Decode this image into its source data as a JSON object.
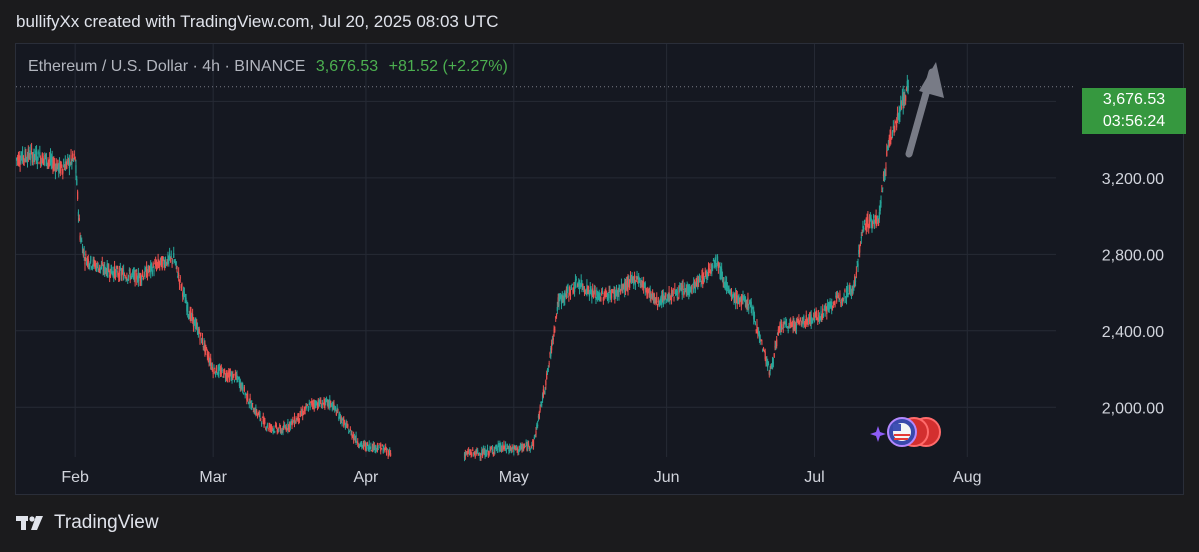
{
  "header": {
    "text": "bullifyXx created with TradingView.com, Jul 20, 2025 08:03 UTC"
  },
  "symbol": {
    "name": "Ethereum / U.S. Dollar · 4h · BINANCE",
    "price": "3,676.53",
    "change": "+81.52 (+2.27%)"
  },
  "badge": {
    "price": "3,676.53",
    "countdown": "03:56:24"
  },
  "footer": {
    "brand": "TradingView"
  },
  "colors": {
    "up": "#26a69a",
    "down": "#ef5350",
    "badge": "#36983f",
    "arrow": "#787b86"
  },
  "chart_data": {
    "type": "line",
    "xlabel": "",
    "ylabel": "",
    "yticks": [
      "2,000.00",
      "2,400.00",
      "2,800.00",
      "3,200.00"
    ],
    "ytick_values": [
      2000,
      2400,
      2800,
      3200
    ],
    "ylim": [
      1740,
      3900
    ],
    "xticks": [
      "Feb",
      "Mar",
      "Apr",
      "May",
      "Jun",
      "Jul",
      "Aug"
    ],
    "xtick_values": [
      "2025-02-01",
      "2025-03-01",
      "2025-04-01",
      "2025-05-01",
      "2025-06-01",
      "2025-07-01",
      "2025-08-01"
    ],
    "xlim": [
      "2025-01-20",
      "2025-08-19"
    ],
    "last_price": 3676.53,
    "series": [
      {
        "x": [
          "2025-01-20",
          "2025-01-23",
          "2025-01-26",
          "2025-01-29",
          "2025-02-01",
          "2025-02-02",
          "2025-02-03",
          "2025-02-06",
          "2025-02-10",
          "2025-02-14",
          "2025-02-18",
          "2025-02-21",
          "2025-02-24",
          "2025-02-26",
          "2025-03-01",
          "2025-03-03",
          "2025-03-06",
          "2025-03-09",
          "2025-03-12",
          "2025-03-15",
          "2025-03-18",
          "2025-03-21",
          "2025-03-25",
          "2025-03-28",
          "2025-03-31",
          "2025-04-04",
          "2025-04-06",
          "2025-04-10",
          "2025-04-15",
          "2025-04-20",
          "2025-04-22",
          "2025-04-25",
          "2025-04-28",
          "2025-05-02",
          "2025-05-05",
          "2025-05-08",
          "2025-05-10",
          "2025-05-14",
          "2025-05-18",
          "2025-05-22",
          "2025-05-26",
          "2025-05-30",
          "2025-06-03",
          "2025-06-06",
          "2025-06-09",
          "2025-06-11",
          "2025-06-14",
          "2025-06-18",
          "2025-06-22",
          "2025-06-24",
          "2025-06-28",
          "2025-07-02",
          "2025-07-06",
          "2025-07-09",
          "2025-07-11",
          "2025-07-14",
          "2025-07-16",
          "2025-07-18",
          "2025-07-20"
        ],
        "values": [
          3300,
          3320,
          3300,
          3250,
          3300,
          2900,
          2780,
          2730,
          2700,
          2680,
          2750,
          2780,
          2500,
          2400,
          2200,
          2180,
          2150,
          2000,
          1900,
          1880,
          1940,
          2020,
          2020,
          1900,
          1800,
          1790,
          1760,
          1770,
          1760,
          1750,
          1760,
          1760,
          1790,
          1780,
          1810,
          2200,
          2550,
          2650,
          2580,
          2600,
          2680,
          2550,
          2600,
          2620,
          2690,
          2780,
          2580,
          2540,
          2180,
          2420,
          2440,
          2480,
          2570,
          2630,
          2960,
          2980,
          3380,
          3530,
          3676.53
        ]
      }
    ]
  }
}
